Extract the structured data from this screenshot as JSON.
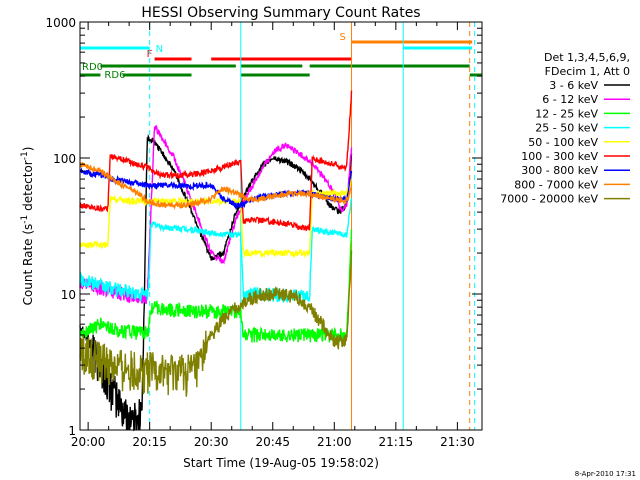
{
  "chart_data": {
    "type": "line",
    "title": "HESSI Observing Summary Count Rates",
    "xlabel": "Start Time (19-Aug-05 19:58:02)",
    "ylabel_main": "Count Rate (s",
    "ylabel_sup1": "-1",
    "ylabel_mid": " detector",
    "ylabel_sup2": "-1",
    "ylabel_end": ")",
    "xlim": [
      19.967,
      21.6
    ],
    "ylim": [
      1,
      1000
    ],
    "y_scale": "log",
    "x_ticks": [
      {
        "value": 20.0,
        "label": "20:00"
      },
      {
        "value": 20.25,
        "label": "20:15"
      },
      {
        "value": 20.5,
        "label": "20:30"
      },
      {
        "value": 20.75,
        "label": "20:45"
      },
      {
        "value": 21.0,
        "label": "21:00"
      },
      {
        "value": 21.25,
        "label": "21:15"
      },
      {
        "value": 21.5,
        "label": "21:30"
      }
    ],
    "y_ticks": [
      {
        "value": 1,
        "label": "1"
      },
      {
        "value": 10,
        "label": "10"
      },
      {
        "value": 100,
        "label": "100"
      },
      {
        "value": 1000,
        "label": "1000"
      }
    ],
    "legend": {
      "header1": "Det 1,3,4,5,6,9,",
      "header2": "FDecim 1, Att 0",
      "placement": "right"
    },
    "series": [
      {
        "name": "3 - 6 keV",
        "color": "#000000",
        "x": [
          19.967,
          20.05,
          20.1,
          20.15,
          20.2,
          20.22,
          20.24,
          20.27,
          20.3,
          20.35,
          20.4,
          20.45,
          20.5,
          20.55,
          20.6,
          20.65,
          20.7,
          20.75,
          20.8,
          20.85,
          20.9,
          20.95,
          20.98,
          21.02,
          21.05,
          21.07
        ],
        "y": [
          6,
          3,
          2,
          1.3,
          1.2,
          1.5,
          140,
          130,
          110,
          80,
          50,
          30,
          18,
          20,
          40,
          60,
          85,
          100,
          95,
          85,
          70,
          55,
          45,
          40,
          45,
          110
        ]
      },
      {
        "name": "6 - 12 keV",
        "color": "#ff00ff",
        "x": [
          19.967,
          20.05,
          20.1,
          20.15,
          20.2,
          20.24,
          20.27,
          20.3,
          20.35,
          20.4,
          20.45,
          20.5,
          20.55,
          20.6,
          20.65,
          20.7,
          20.75,
          20.8,
          20.85,
          20.9,
          20.95,
          21.0,
          21.03,
          21.05,
          21.07
        ],
        "y": [
          12,
          11,
          10.5,
          10,
          9.5,
          9.5,
          170,
          140,
          100,
          60,
          35,
          20,
          17,
          35,
          55,
          80,
          110,
          125,
          110,
          95,
          75,
          55,
          40,
          45,
          120
        ]
      },
      {
        "name": "12 - 25 keV",
        "color": "#00ff00",
        "x": [
          19.967,
          20.05,
          20.1,
          20.2,
          20.245,
          20.255,
          20.4,
          20.5,
          20.62,
          20.63,
          20.9,
          21.0,
          21.05,
          21.07
        ],
        "y": [
          5,
          6,
          5.5,
          5.2,
          5.2,
          8,
          7.5,
          7.5,
          7.5,
          5,
          5,
          5,
          5,
          30
        ]
      },
      {
        "name": "25 - 50 keV",
        "color": "#00ffff",
        "x": [
          19.967,
          20.02,
          20.05,
          20.1,
          20.15,
          20.2,
          20.245,
          20.255,
          20.3,
          20.4,
          20.5,
          20.62,
          20.63,
          20.7,
          20.8,
          20.9,
          20.91,
          21.0,
          21.05,
          21.07
        ],
        "y": [
          13,
          12,
          11.5,
          11,
          10.5,
          10,
          10,
          33,
          31,
          30,
          28,
          27,
          10,
          10,
          9.8,
          9.5,
          30,
          28,
          27,
          50
        ]
      },
      {
        "name": "50 - 100 keV",
        "color": "#ffff00",
        "x": [
          19.967,
          20.08,
          20.09,
          20.2,
          20.245,
          20.255,
          20.3,
          20.4,
          20.5,
          20.62,
          20.63,
          20.7,
          20.8,
          20.9,
          20.91,
          21.0,
          21.05,
          21.07
        ],
        "y": [
          23,
          23,
          50,
          48,
          48,
          48,
          48,
          48,
          48,
          48,
          20,
          20,
          20,
          20,
          55,
          55,
          55,
          70
        ]
      },
      {
        "name": "100 - 300 keV",
        "color": "#ff0000",
        "x": [
          19.967,
          20.08,
          20.09,
          20.2,
          20.245,
          20.255,
          20.3,
          20.4,
          20.5,
          20.62,
          20.63,
          20.7,
          20.8,
          20.9,
          20.91,
          21.0,
          21.05,
          21.07
        ],
        "y": [
          45,
          42,
          105,
          90,
          85,
          80,
          75,
          75,
          80,
          95,
          35,
          35,
          33,
          30,
          100,
          90,
          85,
          300
        ]
      },
      {
        "name": "300 - 800 keV",
        "color": "#0000ff",
        "x": [
          19.967,
          20.05,
          20.1,
          20.2,
          20.245,
          20.3,
          20.4,
          20.5,
          20.55,
          20.6,
          20.62,
          20.65,
          20.7,
          20.8,
          20.9,
          20.95,
          21.0,
          21.05,
          21.07
        ],
        "y": [
          80,
          75,
          70,
          65,
          63,
          63,
          62,
          63,
          50,
          45,
          45,
          48,
          52,
          55,
          55,
          52,
          50,
          50,
          80
        ]
      },
      {
        "name": "800 - 7000 keV",
        "color": "#ff8000",
        "x": [
          19.967,
          20.05,
          20.1,
          20.2,
          20.245,
          20.3,
          20.4,
          20.5,
          20.55,
          20.6,
          20.65,
          20.7,
          20.8,
          20.9,
          20.95,
          21.0,
          21.05,
          21.07
        ],
        "y": [
          90,
          80,
          70,
          55,
          48,
          45,
          45,
          50,
          60,
          55,
          50,
          50,
          55,
          55,
          52,
          50,
          48,
          60
        ]
      },
      {
        "name": "7000 - 20000 keV",
        "color": "#808000",
        "x": [
          19.967,
          20.05,
          20.1,
          20.2,
          20.245,
          20.3,
          20.4,
          20.45,
          20.5,
          20.55,
          20.6,
          20.65,
          20.7,
          20.8,
          20.85,
          20.9,
          20.95,
          21.0,
          21.05,
          21.07
        ],
        "y": [
          4,
          3.3,
          3,
          2.8,
          2.8,
          2.7,
          2.7,
          3,
          5,
          6.5,
          8,
          9,
          10,
          10,
          9.5,
          8,
          6,
          4.5,
          4.5,
          20
        ]
      }
    ],
    "flags": [
      {
        "label": "N",
        "color": "#00ffff",
        "segments": [
          [
            19.967,
            20.25
          ],
          [
            21.28,
            21.56
          ]
        ]
      },
      {
        "label": "F",
        "color": "#ff0000",
        "segments": [
          [
            20.27,
            20.42
          ],
          [
            20.5,
            21.07
          ]
        ]
      },
      {
        "label": "S",
        "color": "#ff8000",
        "segments": [
          [
            21.07,
            21.56
          ]
        ]
      },
      {
        "label": "RD0",
        "color": "#008000",
        "segments": [
          [
            20.05,
            20.6
          ],
          [
            20.62,
            20.87
          ],
          [
            20.9,
            21.55
          ]
        ]
      },
      {
        "label": "RD6",
        "color": "#008000",
        "segments": [
          [
            19.967,
            20.05
          ],
          [
            20.14,
            20.42
          ],
          [
            20.62,
            20.9
          ],
          [
            21.55,
            21.6
          ]
        ]
      }
    ],
    "vlines": [
      {
        "x": 20.25,
        "color": "#00ffff",
        "dashed": true
      },
      {
        "x": 20.62,
        "color": "#00ffff",
        "dashed": false
      },
      {
        "x": 21.07,
        "color": "#ff8000",
        "dashed": false
      },
      {
        "x": 21.28,
        "color": "#00ffff",
        "dashed": false
      },
      {
        "x": 21.55,
        "color": "#ff8000",
        "dashed": true
      },
      {
        "x": 21.57,
        "color": "#00ffff",
        "dashed": true
      }
    ],
    "footer_date": "8-Apr-2010 17:31"
  }
}
